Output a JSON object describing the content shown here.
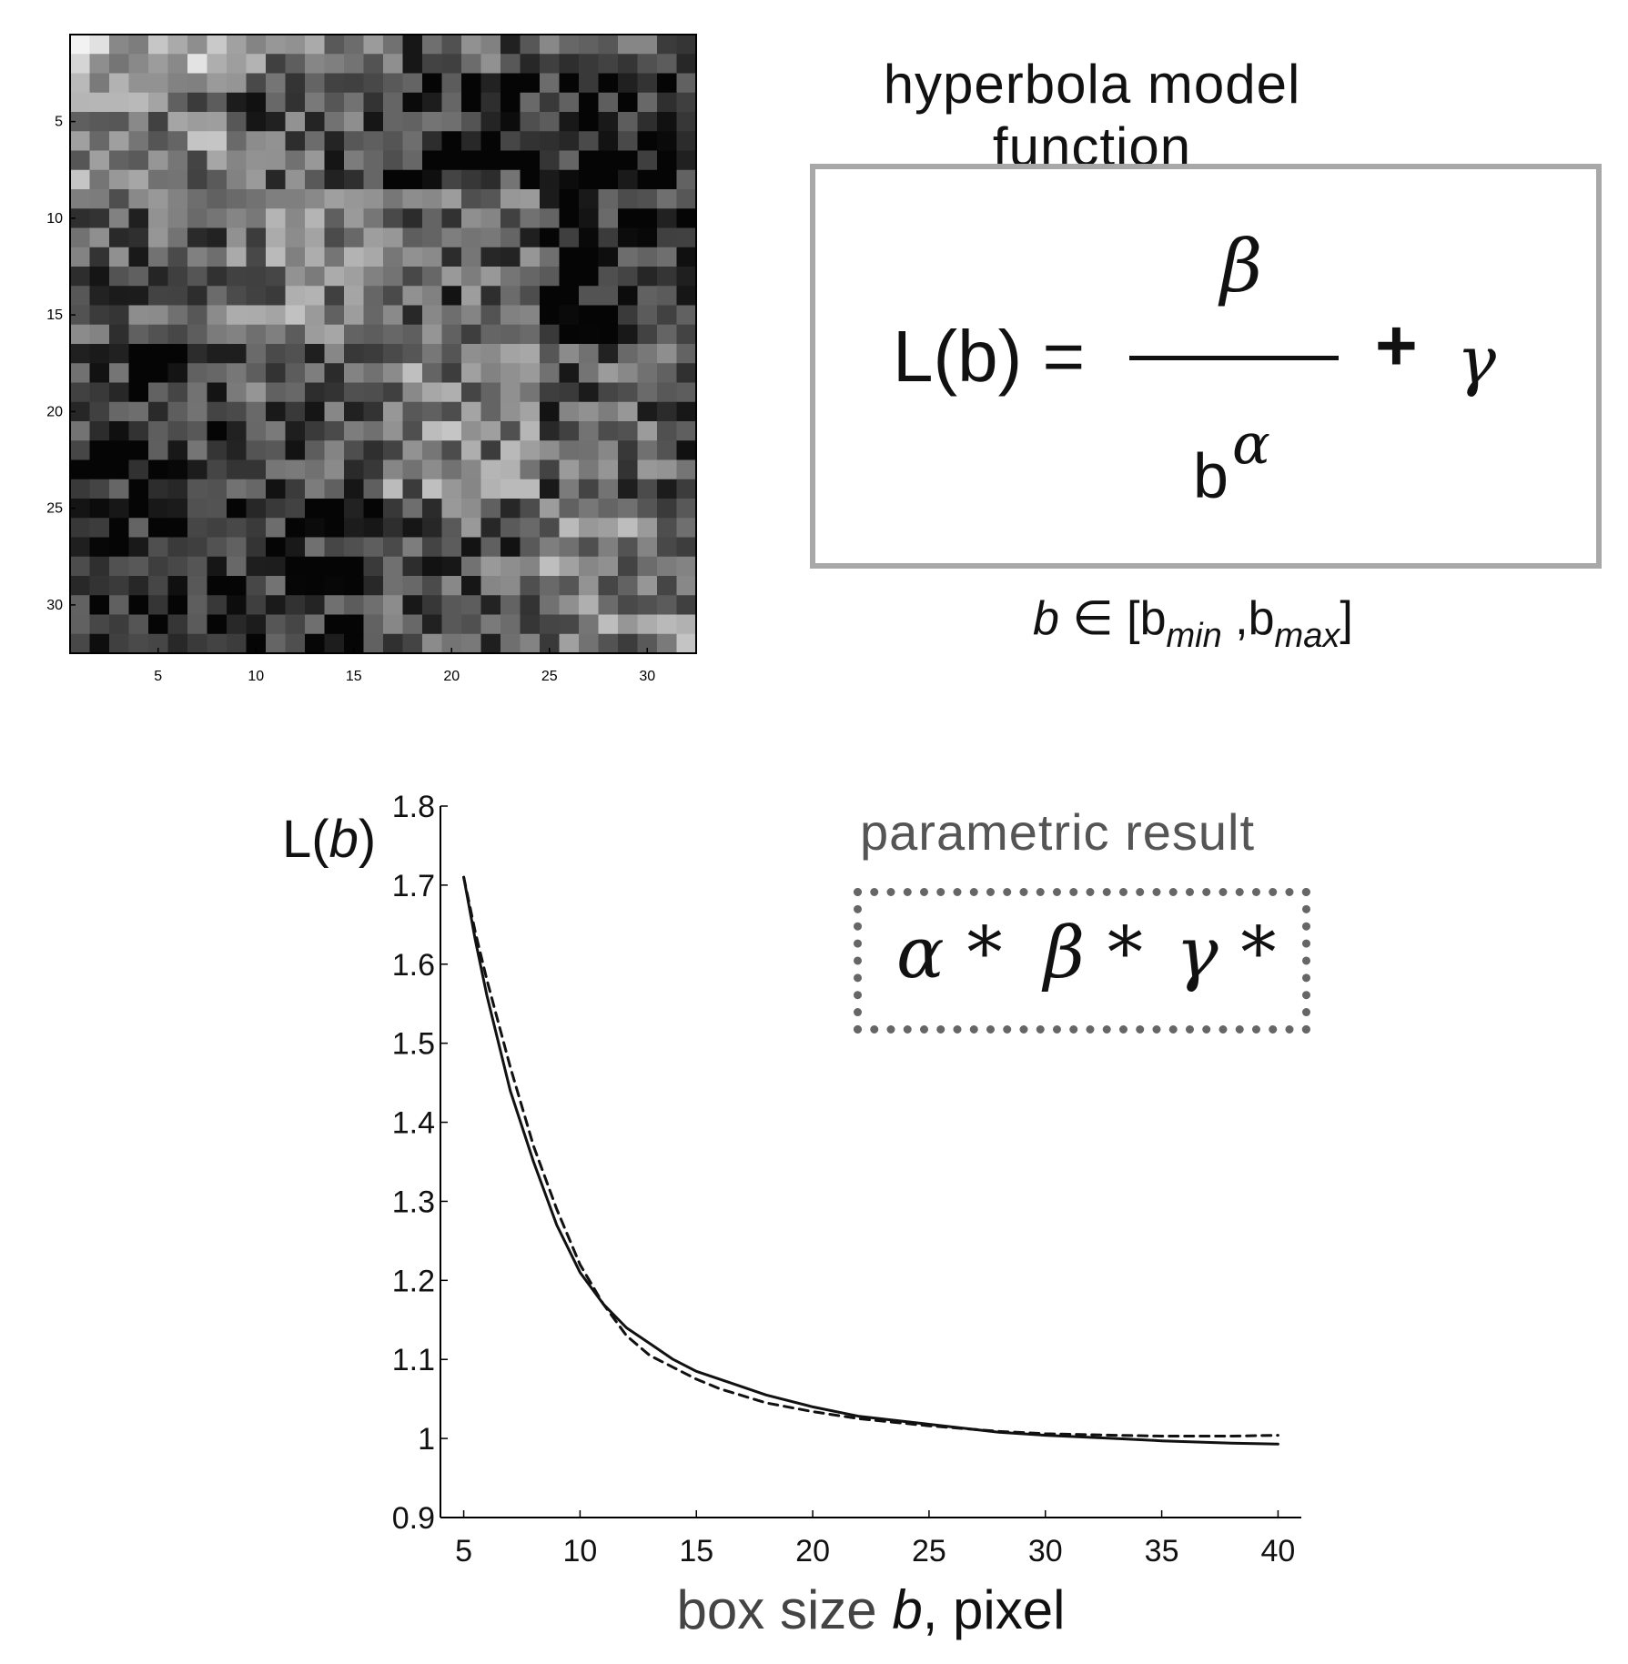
{
  "chart_data": [
    {
      "type": "heatmap",
      "grid_size": [
        32,
        32
      ],
      "colormap": "grayscale",
      "x_ticks": [
        "5",
        "10",
        "15",
        "20",
        "25",
        "30"
      ],
      "y_ticks": [
        "5",
        "10",
        "15",
        "20",
        "25",
        "30"
      ],
      "note_values": "values not legible; cell intensities are illustrative"
    },
    {
      "type": "line",
      "xlabel_prefix": "box size ",
      "xlabel_var": "b",
      "xlabel_suffix": ", pixel",
      "ylabel_prefix": "L(",
      "ylabel_var": "b",
      "ylabel_suffix": ")",
      "xlim": [
        4,
        41
      ],
      "ylim": [
        0.9,
        1.8
      ],
      "x_ticks": [
        5,
        10,
        15,
        20,
        25,
        30,
        35,
        40
      ],
      "y_ticks": [
        0.9,
        1.0,
        1.1,
        1.2,
        1.3,
        1.4,
        1.5,
        1.6,
        1.7,
        1.8
      ],
      "y_tick_labels": [
        "0.9",
        "1",
        "1.1",
        "1.2",
        "1.3",
        "1.4",
        "1.5",
        "1.6",
        "1.7",
        "1.8"
      ],
      "x_tick_labels": [
        "5",
        "10",
        "15",
        "20",
        "25",
        "30",
        "35",
        "40"
      ],
      "grid": false,
      "series": [
        {
          "style": "solid",
          "x": [
            5,
            5.5,
            6,
            7,
            8,
            9,
            10,
            11,
            12,
            13,
            14,
            15,
            16,
            18,
            20,
            22,
            25,
            28,
            30,
            33,
            35,
            38,
            40
          ],
          "y": [
            1.71,
            1.63,
            1.56,
            1.44,
            1.35,
            1.27,
            1.21,
            1.17,
            1.14,
            1.12,
            1.1,
            1.085,
            1.075,
            1.055,
            1.04,
            1.028,
            1.018,
            1.008,
            1.004,
            1.0,
            0.997,
            0.994,
            0.993
          ]
        },
        {
          "style": "dashed",
          "x": [
            5,
            5.5,
            6,
            7,
            8,
            9,
            10,
            11,
            12,
            13,
            14,
            15,
            16,
            18,
            20,
            22,
            25,
            28,
            30,
            33,
            35,
            38,
            40
          ],
          "y": [
            1.71,
            1.64,
            1.58,
            1.47,
            1.37,
            1.29,
            1.22,
            1.17,
            1.13,
            1.105,
            1.09,
            1.075,
            1.063,
            1.045,
            1.034,
            1.025,
            1.016,
            1.009,
            1.006,
            1.004,
            1.003,
            1.003,
            1.004
          ]
        }
      ]
    }
  ],
  "formula": {
    "title": "hyperbola model function",
    "lhs": "L(b) =",
    "numerator": "β",
    "denominator_base": "b",
    "denominator_exp": "α",
    "plus": "+",
    "addend": "γ",
    "domain_var": "b",
    "domain_in": " ∈ [",
    "domain_b1": "b",
    "domain_sub1": "min",
    "domain_sep": " ,",
    "domain_b2": "b",
    "domain_sub2": "max",
    "domain_close": "]"
  },
  "result": {
    "title": "parametric result",
    "alpha": "α *",
    "beta": "β *",
    "gamma": "γ *"
  },
  "colors": {
    "line": "#111111",
    "box_border": "#a8a8a8",
    "dotted_border": "#666666",
    "muted_text": "#555555"
  }
}
